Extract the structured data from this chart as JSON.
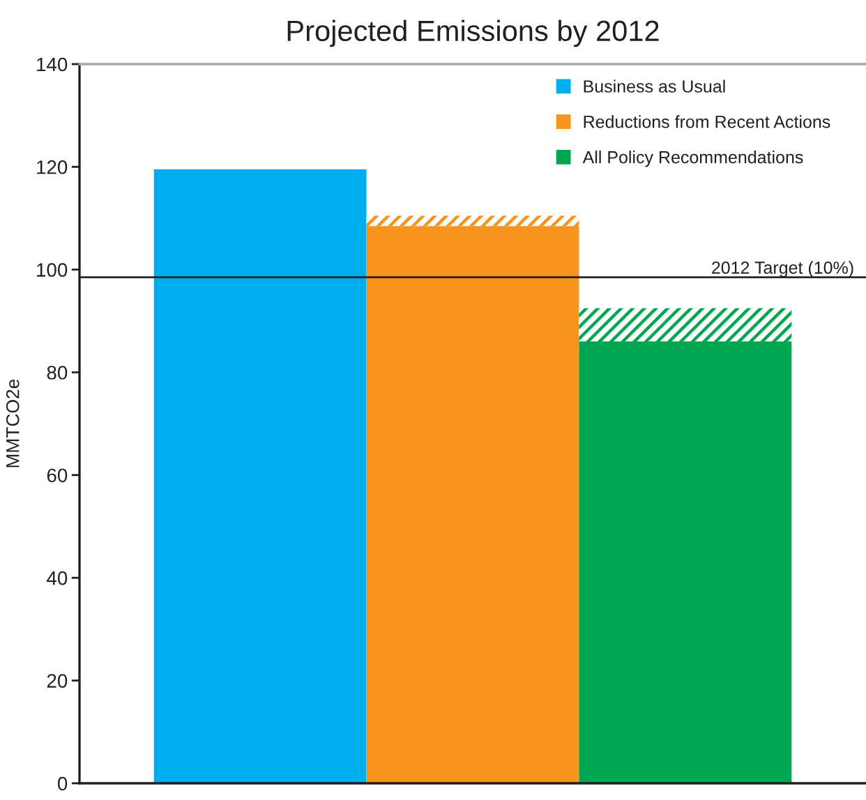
{
  "chart_data": {
    "type": "bar",
    "title": "Projected Emissions by 2012",
    "ylabel": "MMTCO2e",
    "categories": [
      null,
      null,
      null
    ],
    "stacked": true,
    "series": [
      {
        "name": "Business as Usual",
        "color": "#00aeef",
        "values": [
          119.5,
          null,
          null
        ]
      },
      {
        "name": "Reductions from Recent Actions",
        "color": "#f7941d",
        "values": [
          null,
          108.5,
          null
        ]
      },
      {
        "name": "All Policy Recommendations",
        "color": "#00a651",
        "values": [
          null,
          null,
          86
        ]
      },
      {
        "colors": [
          null,
          "#f7941d",
          "#00a651"
        ],
        "values": [
          null,
          2,
          6.5
        ]
      }
    ],
    "ylim": [
      0,
      140
    ],
    "yticks": [
      0,
      20,
      40,
      60,
      80,
      100,
      120,
      140
    ],
    "ref_lines": [
      {
        "axis": "y",
        "value": 98.5,
        "label": "2012 Target (10%)",
        "color": "#231f20"
      }
    ],
    "legend": "top right"
  }
}
